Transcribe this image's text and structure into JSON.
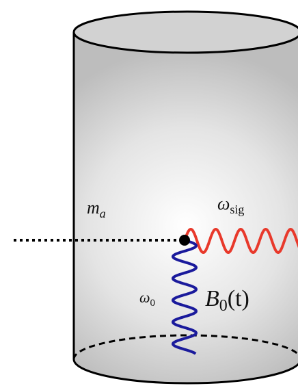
{
  "labels": [
    {
      "main": "m",
      "sub": "a"
    },
    {
      "main": "ω",
      "sub": "sig"
    },
    {
      "main": "ω",
      "sub": "0"
    },
    {
      "main": "B",
      "sub": "0",
      "tail": "(t)"
    }
  ]
}
